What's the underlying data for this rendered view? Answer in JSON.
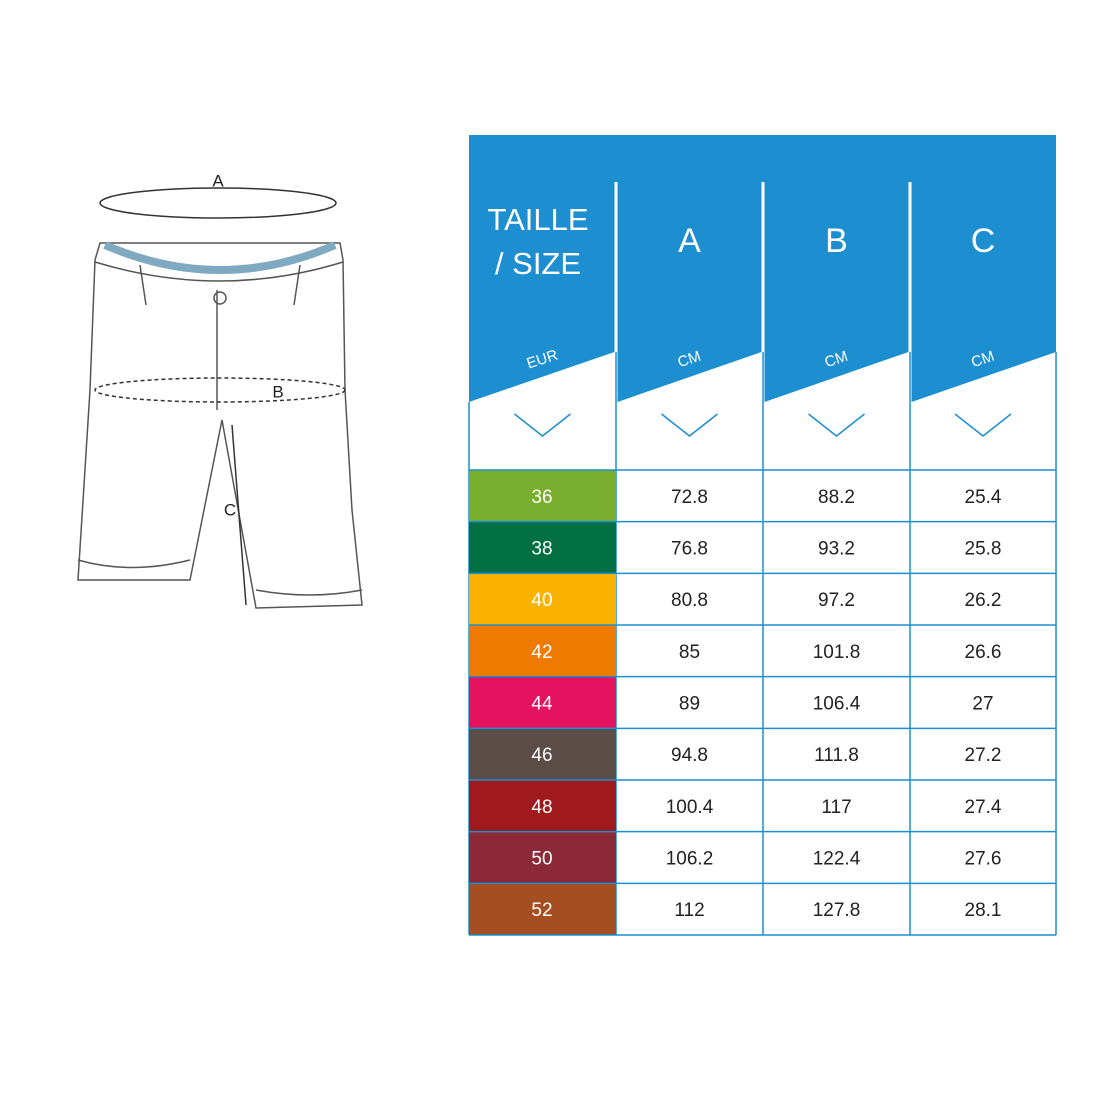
{
  "diagram": {
    "labels": [
      "A",
      "B",
      "C"
    ]
  },
  "table": {
    "header": [
      "TAILLE",
      "/ SIZE"
    ],
    "columns": [
      "A",
      "B",
      "C"
    ],
    "units": [
      "EUR",
      "CM",
      "CM",
      "CM"
    ],
    "header_color": "#1d8fd1",
    "rows": [
      {
        "size": "36",
        "color": "#7aae2e",
        "values": [
          "72.8",
          "88.2",
          "25.4"
        ]
      },
      {
        "size": "38",
        "color": "#006f44",
        "values": [
          "76.8",
          "93.2",
          "25.8"
        ]
      },
      {
        "size": "40",
        "color": "#f9b200",
        "values": [
          "80.8",
          "97.2",
          "26.2"
        ]
      },
      {
        "size": "42",
        "color": "#ee7b00",
        "values": [
          "85",
          "101.8",
          "26.6"
        ]
      },
      {
        "size": "44",
        "color": "#e5125f",
        "values": [
          "89",
          "106.4",
          "27"
        ]
      },
      {
        "size": "46",
        "color": "#5c4c48",
        "values": [
          "94.8",
          "111.8",
          "27.2"
        ]
      },
      {
        "size": "48",
        "color": "#a0191d",
        "values": [
          "100.4",
          "117",
          "27.4"
        ]
      },
      {
        "size": "50",
        "color": "#8b2a36",
        "values": [
          "106.2",
          "122.4",
          "27.6"
        ]
      },
      {
        "size": "52",
        "color": "#a54e22",
        "values": [
          "112",
          "127.8",
          "28.1"
        ]
      }
    ]
  }
}
